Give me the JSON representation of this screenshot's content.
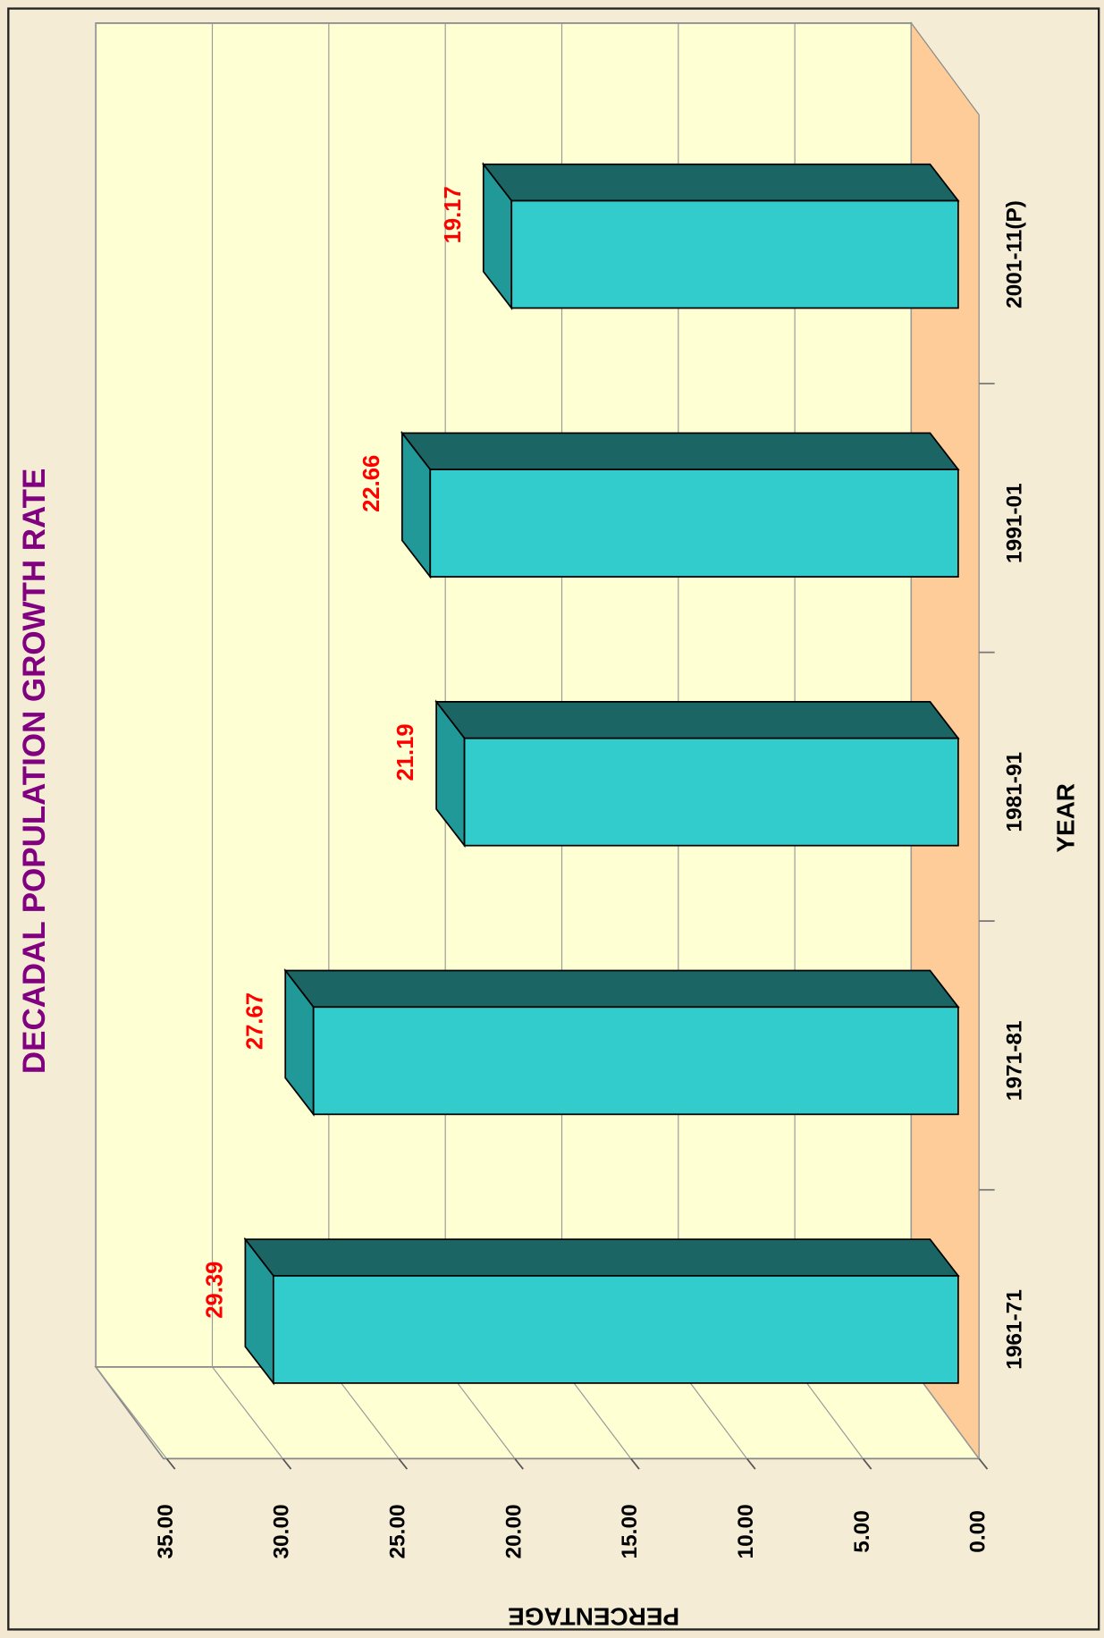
{
  "chart_data": {
    "type": "bar3d",
    "title": "DECADAL POPULATION GROWTH RATE",
    "x_label": "YEAR",
    "y_label": "PERCENTAGE",
    "categories": [
      "1961-71",
      "1971-81",
      "1981-91",
      "1991-01",
      "2001-11(P)"
    ],
    "values": [
      29.39,
      27.67,
      21.19,
      22.66,
      19.17
    ],
    "ylim": [
      0,
      35
    ],
    "yticks": [
      {
        "value": 0,
        "label": "0.00"
      },
      {
        "value": 5,
        "label": "5.00"
      },
      {
        "value": 10,
        "label": "10.00"
      },
      {
        "value": 15,
        "label": "15.00"
      },
      {
        "value": 20,
        "label": "20.00"
      },
      {
        "value": 25,
        "label": "25.00"
      },
      {
        "value": 30,
        "label": "30.00"
      },
      {
        "value": 35,
        "label": "35.00"
      }
    ],
    "grid": true,
    "color": "#33cccc"
  }
}
